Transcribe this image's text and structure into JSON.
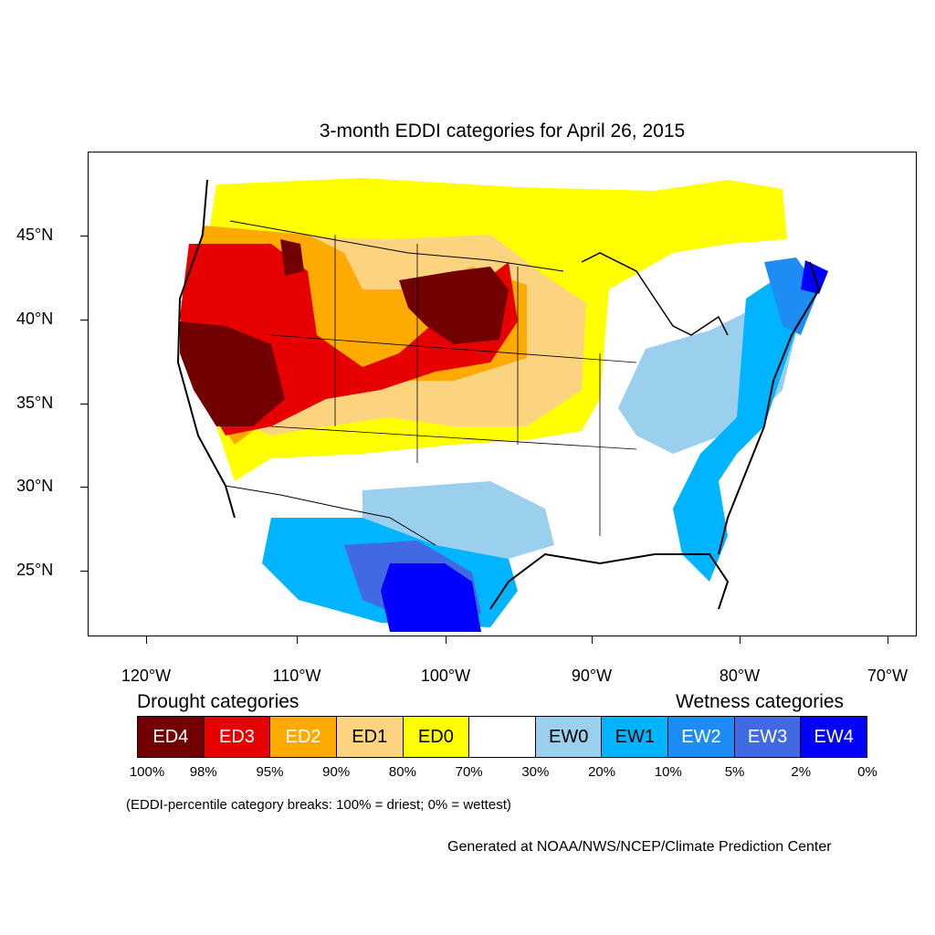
{
  "title": "3-month EDDI categories for April 26, 2015",
  "latitude_labels": [
    "45°N",
    "40°N",
    "35°N",
    "30°N",
    "25°N"
  ],
  "longitude_labels": [
    "120°W",
    "110°W",
    "100°W",
    "90°W",
    "80°W",
    "70°W"
  ],
  "legend": {
    "drought_heading": "Drought categories",
    "wetness_heading": "Wetness categories",
    "categories": [
      {
        "label": "ED4",
        "color": "#730000",
        "text_color": "#ffffff"
      },
      {
        "label": "ED3",
        "color": "#e60000",
        "text_color": "#ffffff"
      },
      {
        "label": "ED2",
        "color": "#ffaa00",
        "text_color": "#ffffff"
      },
      {
        "label": "ED1",
        "color": "#fcd37f",
        "text_color": "#000000"
      },
      {
        "label": "ED0",
        "color": "#ffff00",
        "text_color": "#000000"
      },
      {
        "label": "",
        "color": "#ffffff",
        "text_color": "#000000"
      },
      {
        "label": "EW0",
        "color": "#9bcfee",
        "text_color": "#000000"
      },
      {
        "label": "EW1",
        "color": "#00b4ff",
        "text_color": "#000000"
      },
      {
        "label": "EW2",
        "color": "#1e8cf5",
        "text_color": "#ffffff"
      },
      {
        "label": "EW3",
        "color": "#4169e1",
        "text_color": "#ffffff"
      },
      {
        "label": "EW4",
        "color": "#0000ff",
        "text_color": "#ffffff"
      }
    ],
    "breaks": [
      "100%",
      "98%",
      "95%",
      "90%",
      "80%",
      "70%",
      "30%",
      "20%",
      "10%",
      "5%",
      "2%",
      "0%"
    ],
    "note": "(EDDI-percentile category breaks: 100% = driest; 0% = wettest)"
  },
  "credit": "Generated at NOAA/NWS/NCEP/Climate Prediction Center"
}
